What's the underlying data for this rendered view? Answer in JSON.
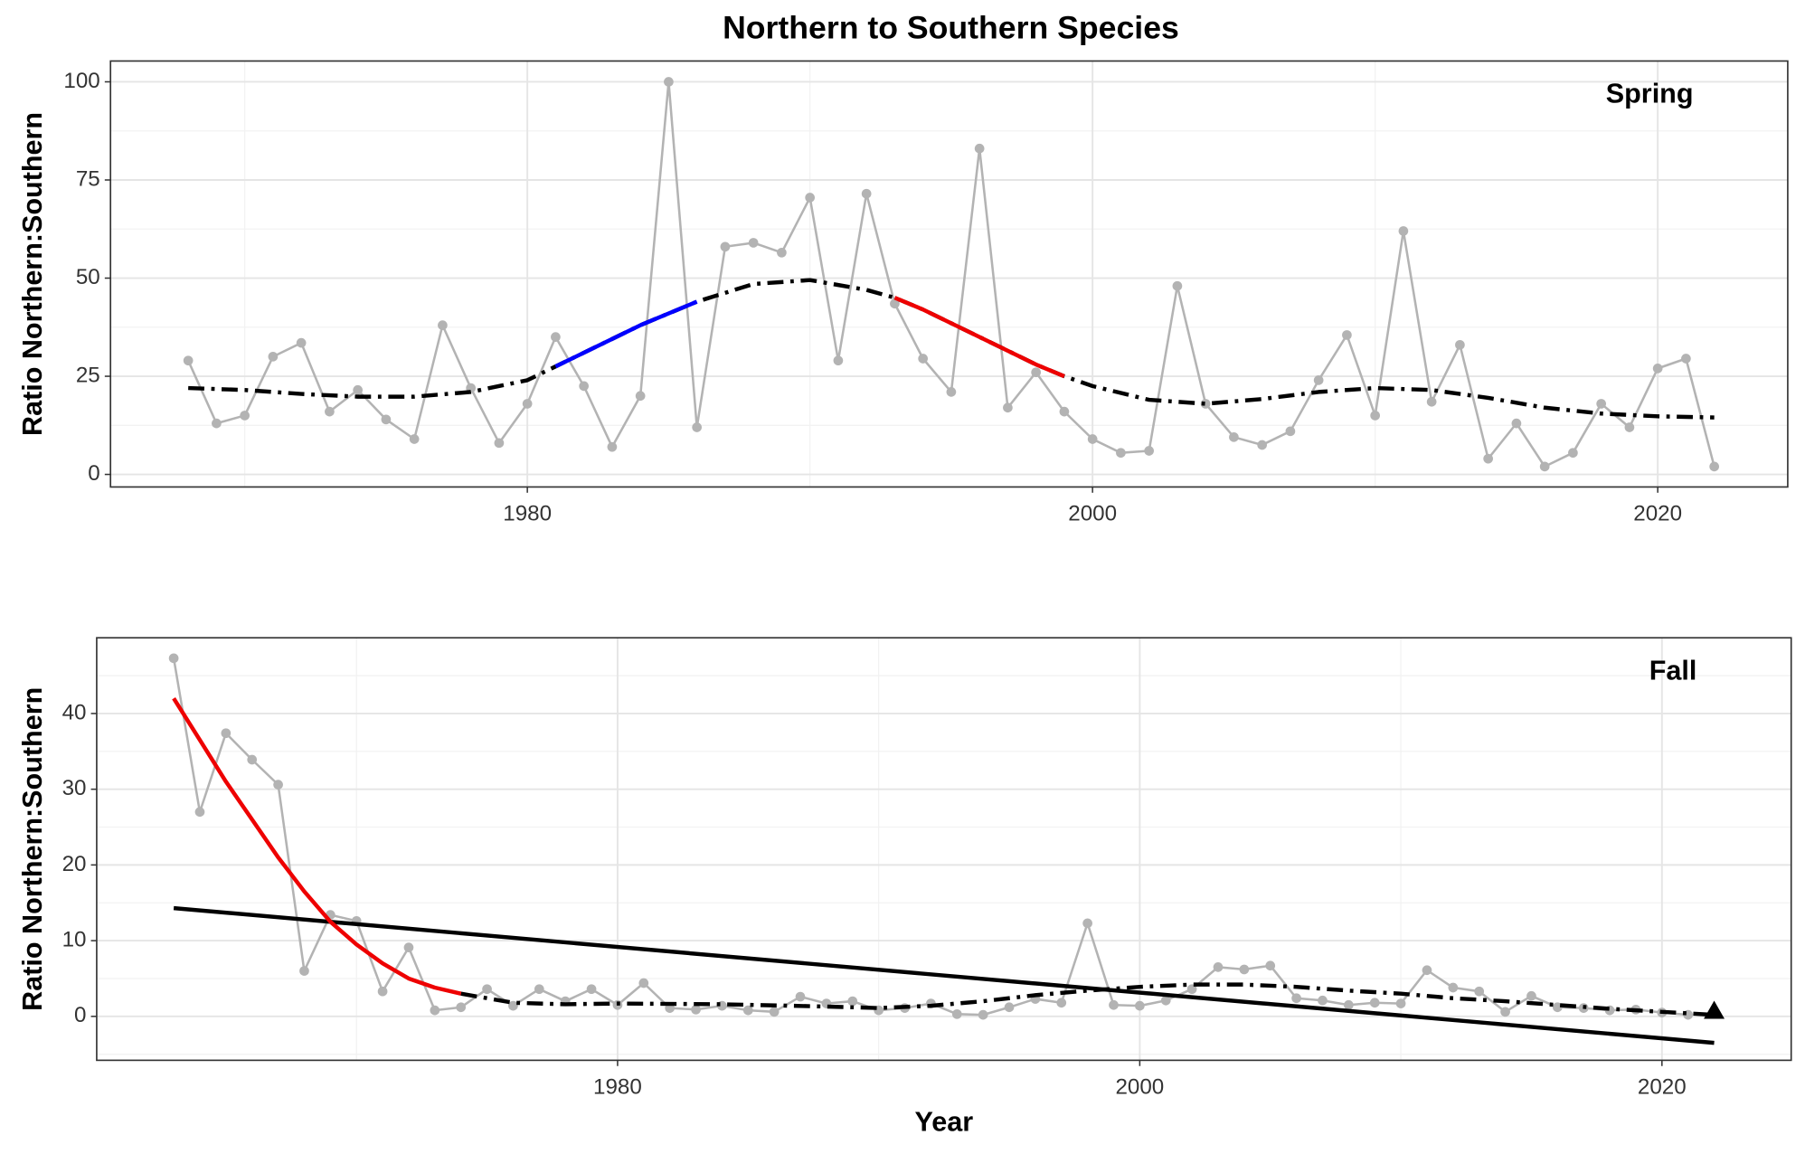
{
  "chart_data": [
    {
      "type": "line",
      "title": "Northern to Southern Species",
      "annotation": "Spring",
      "ylabel": "Ratio Northern:Southern",
      "x": [
        1968,
        1969,
        1970,
        1971,
        1972,
        1973,
        1974,
        1975,
        1976,
        1977,
        1978,
        1979,
        1980,
        1981,
        1982,
        1983,
        1984,
        1985,
        1986,
        1987,
        1988,
        1989,
        1990,
        1991,
        1992,
        1993,
        1994,
        1995,
        1996,
        1997,
        1998,
        1999,
        2000,
        2001,
        2002,
        2003,
        2004,
        2005,
        2006,
        2007,
        2008,
        2009,
        2010,
        2011,
        2012,
        2013,
        2014,
        2015,
        2016,
        2017,
        2018,
        2019,
        2020,
        2021,
        2022
      ],
      "values": [
        29,
        13,
        15,
        30,
        33.5,
        16,
        21.5,
        14,
        9,
        38,
        22,
        8,
        18,
        35,
        22.5,
        7,
        20,
        100,
        12,
        58,
        59,
        56.5,
        70.5,
        29,
        71.5,
        43.5,
        29.5,
        21,
        83,
        17,
        26,
        16,
        9,
        5.5,
        6,
        48,
        18,
        9.5,
        7.5,
        11,
        24,
        35.5,
        15,
        62,
        18.5,
        33,
        4,
        13,
        2,
        5.5,
        18,
        12,
        27,
        29.5,
        2
      ],
      "color": "#b3b3b3",
      "xlim": [
        1965.25,
        2024.6
      ],
      "ylim": [
        -3.2,
        105.3
      ],
      "xticks": [
        1980,
        2000,
        2020
      ],
      "yticks": [
        0,
        25,
        50,
        75,
        100
      ],
      "xminor": [
        1970,
        1990,
        2010
      ],
      "yminor": [
        12.5,
        37.5,
        62.5,
        87.5
      ],
      "grid": true,
      "smooth": {
        "x": [
          1968,
          1970,
          1972,
          1974,
          1976,
          1978,
          1980,
          1981,
          1982,
          1984,
          1986,
          1988,
          1990,
          1992,
          1993,
          1994,
          1996,
          1998,
          1999,
          2000,
          2002,
          2004,
          2006,
          2008,
          2010,
          2012,
          2014,
          2016,
          2018,
          2020,
          2022
        ],
        "values": [
          22,
          21.5,
          20.5,
          19.8,
          19.8,
          21,
          24,
          27.5,
          31,
          38,
          44,
          48.5,
          49.5,
          47,
          45,
          42,
          35,
          28,
          25,
          22.5,
          19,
          18,
          19.2,
          21,
          22,
          21.5,
          19.5,
          17,
          15.5,
          14.8,
          14.5
        ],
        "color": "#000000",
        "dash": "dashdot"
      },
      "segments": [
        {
          "x": [
            1981,
            1982,
            1984,
            1986
          ],
          "values": [
            27.5,
            31,
            38,
            44
          ],
          "color": "#0000ff"
        },
        {
          "x": [
            1993,
            1994,
            1996,
            1998,
            1999
          ],
          "values": [
            45,
            42,
            35,
            28,
            25
          ],
          "color": "#ee0000"
        }
      ]
    },
    {
      "type": "line",
      "annotation": "Fall",
      "ylabel": "Ratio Northern:Southern",
      "xlabel": "Year",
      "x": [
        1963,
        1964,
        1965,
        1966,
        1967,
        1968,
        1969,
        1970,
        1971,
        1972,
        1973,
        1974,
        1975,
        1976,
        1977,
        1978,
        1979,
        1980,
        1981,
        1982,
        1983,
        1984,
        1985,
        1986,
        1987,
        1988,
        1989,
        1990,
        1991,
        1992,
        1993,
        1994,
        1995,
        1996,
        1997,
        1998,
        1999,
        2000,
        2001,
        2002,
        2003,
        2004,
        2005,
        2006,
        2007,
        2008,
        2009,
        2010,
        2011,
        2012,
        2013,
        2014,
        2015,
        2016,
        2017,
        2018,
        2019,
        2020,
        2021
      ],
      "values": [
        47.3,
        27,
        37.4,
        33.9,
        30.6,
        6,
        13.4,
        12.6,
        3.3,
        9.1,
        0.8,
        1.2,
        3.6,
        1.4,
        3.6,
        2,
        3.6,
        1.5,
        4.4,
        1.1,
        0.9,
        1.4,
        0.8,
        0.6,
        2.6,
        1.7,
        2,
        0.8,
        1.1,
        1.7,
        0.3,
        0.2,
        1.2,
        2.3,
        1.8,
        12.3,
        1.5,
        1.4,
        2.1,
        3.6,
        6.5,
        6.2,
        6.7,
        2.4,
        2.1,
        1.5,
        1.8,
        1.7,
        6.1,
        3.8,
        3.3,
        0.6,
        2.7,
        1.2,
        1.1,
        0.8,
        0.9,
        0.5,
        0.2
      ],
      "color": "#b3b3b3",
      "xlim": [
        1960.05,
        2024.95
      ],
      "ylim": [
        -5.8,
        50
      ],
      "xticks": [
        1980,
        2000,
        2020
      ],
      "yticks": [
        0,
        10,
        20,
        30,
        40
      ],
      "xminor": [
        1970,
        1990,
        2010
      ],
      "yminor": [
        -5,
        5,
        15,
        25,
        35,
        45
      ],
      "grid": true,
      "smooth": {
        "x": [
          1974,
          1976,
          1978,
          1980,
          1984,
          1988,
          1990,
          1992,
          1994,
          1996,
          1998,
          2000,
          2002,
          2004,
          2006,
          2008,
          2010,
          2012,
          2014,
          2016,
          2018,
          2020,
          2022
        ],
        "values": [
          3,
          1.8,
          1.6,
          1.7,
          1.6,
          1.3,
          1.1,
          1.4,
          2,
          2.8,
          3.4,
          3.9,
          4.2,
          4.2,
          3.9,
          3.4,
          3,
          2.4,
          2,
          1.5,
          1,
          0.6,
          0.2
        ],
        "color": "#000000",
        "dash": "dashdot"
      },
      "segments": [
        {
          "x": [
            1963,
            1964,
            1965,
            1966,
            1967,
            1968,
            1969,
            1970,
            1971,
            1972,
            1973,
            1974
          ],
          "values": [
            42,
            36.5,
            31,
            26,
            21,
            16.5,
            12.5,
            9.5,
            7,
            5,
            3.8,
            3
          ],
          "color": "#ee0000"
        }
      ],
      "trend": {
        "x": [
          1963,
          2022
        ],
        "values": [
          14.3,
          -3.5
        ],
        "color": "#000000"
      },
      "marker": {
        "x": 2022,
        "value": 0.7,
        "shape": "triangle",
        "color": "#000000"
      }
    }
  ]
}
